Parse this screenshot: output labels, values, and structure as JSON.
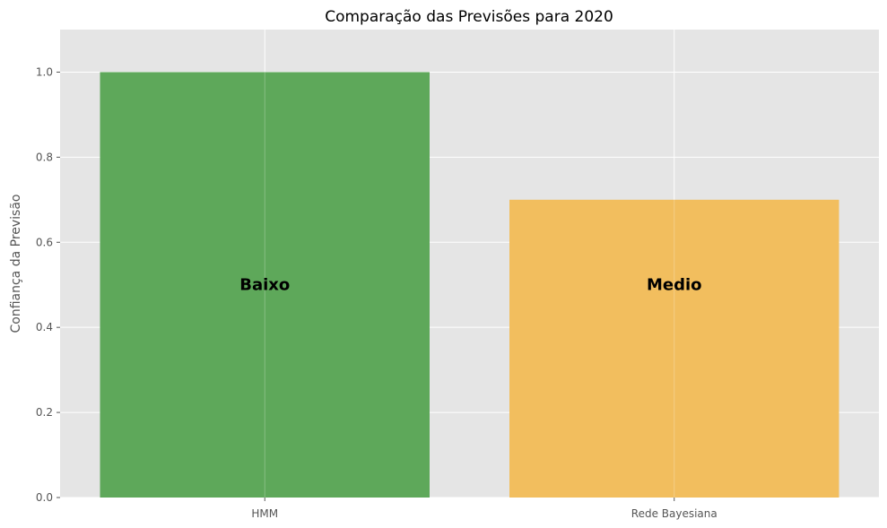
{
  "chart_data": {
    "type": "bar",
    "title": "Comparação das Previsões para 2020",
    "xlabel": "",
    "ylabel": "Confiança da Previsão",
    "categories": [
      "HMM",
      "Rede Bayesiana"
    ],
    "values": [
      1.0,
      0.7
    ],
    "bar_labels": [
      "Baixo",
      "Medio"
    ],
    "bar_label_y": 0.5,
    "colors": [
      "#5ea85a",
      "#f2be5e"
    ],
    "ylim": [
      0,
      1.1
    ],
    "yticks": [
      "0.0",
      "0.2",
      "0.4",
      "0.6",
      "0.8",
      "1.0"
    ],
    "grid": true,
    "background": "#e5e5e5"
  }
}
